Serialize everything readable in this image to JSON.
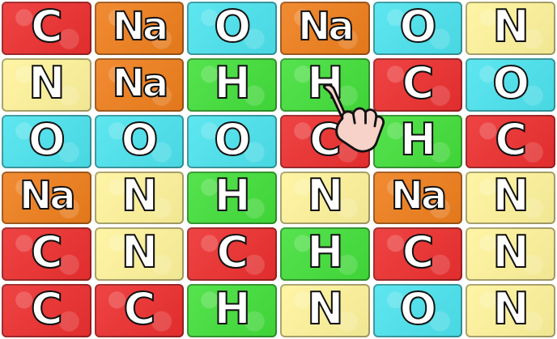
{
  "board": {
    "rows": [
      [
        {
          "symbol": "C",
          "color": "red"
        },
        {
          "symbol": "Na",
          "color": "orange"
        },
        {
          "symbol": "O",
          "color": "cyan"
        },
        {
          "symbol": "Na",
          "color": "orange"
        },
        {
          "symbol": "O",
          "color": "cyan"
        },
        {
          "symbol": "N",
          "color": "yellow"
        }
      ],
      [
        {
          "symbol": "N",
          "color": "yellow"
        },
        {
          "symbol": "Na",
          "color": "orange"
        },
        {
          "symbol": "H",
          "color": "green"
        },
        {
          "symbol": "H",
          "color": "green"
        },
        {
          "symbol": "C",
          "color": "red"
        },
        {
          "symbol": "O",
          "color": "cyan"
        }
      ],
      [
        {
          "symbol": "O",
          "color": "cyan"
        },
        {
          "symbol": "O",
          "color": "cyan"
        },
        {
          "symbol": "O",
          "color": "cyan"
        },
        {
          "symbol": "C",
          "color": "red"
        },
        {
          "symbol": "H",
          "color": "green"
        },
        {
          "symbol": "C",
          "color": "red"
        }
      ],
      [
        {
          "symbol": "Na",
          "color": "orange"
        },
        {
          "symbol": "N",
          "color": "yellow"
        },
        {
          "symbol": "H",
          "color": "green"
        },
        {
          "symbol": "N",
          "color": "yellow"
        },
        {
          "symbol": "Na",
          "color": "orange"
        },
        {
          "symbol": "N",
          "color": "yellow"
        }
      ],
      [
        {
          "symbol": "C",
          "color": "red"
        },
        {
          "symbol": "N",
          "color": "yellow"
        },
        {
          "symbol": "C",
          "color": "red"
        },
        {
          "symbol": "H",
          "color": "green"
        },
        {
          "symbol": "C",
          "color": "red"
        },
        {
          "symbol": "N",
          "color": "yellow"
        }
      ],
      [
        {
          "symbol": "C",
          "color": "red"
        },
        {
          "symbol": "C",
          "color": "red"
        },
        {
          "symbol": "H",
          "color": "green"
        },
        {
          "symbol": "N",
          "color": "yellow"
        },
        {
          "symbol": "O",
          "color": "cyan"
        },
        {
          "symbol": "N",
          "color": "yellow"
        }
      ]
    ]
  },
  "colors": {
    "red": "#ee2f2f",
    "orange": "#f07f1c",
    "cyan": "#4ce4ef",
    "yellow": "#fff49b",
    "green": "#43e03b"
  },
  "cursor": {
    "icon": "pointing-hand-icon"
  }
}
